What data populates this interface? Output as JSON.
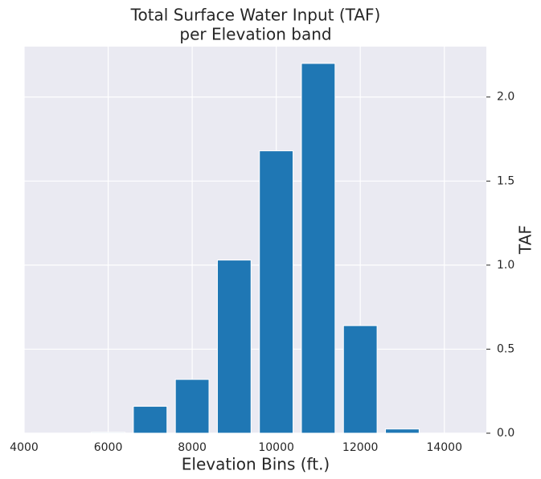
{
  "chart_data": {
    "type": "bar",
    "title": [
      "Total Surface Water Input (TAF)",
      "per Elevation band"
    ],
    "x_label": "Elevation Bins (ft.)",
    "y_label": "TAF",
    "x": [
      6000,
      7000,
      8000,
      9000,
      10000,
      11000,
      12000,
      13000
    ],
    "values": [
      0.005,
      0.16,
      0.32,
      1.03,
      1.68,
      2.2,
      0.64,
      0.025
    ],
    "color": "#1f77b4",
    "xlim": [
      4000,
      15000
    ],
    "xticks": [
      4000,
      6000,
      8000,
      10000,
      12000,
      14000
    ],
    "ylim": [
      0,
      2.3
    ],
    "yticks": [
      {
        "value": 0,
        "label": "0.0"
      },
      0.5,
      {
        "value": 1,
        "label": "1.0"
      },
      1.5,
      {
        "value": 2,
        "label": "2.0"
      }
    ],
    "grid": true,
    "y_axis_side": "right"
  }
}
